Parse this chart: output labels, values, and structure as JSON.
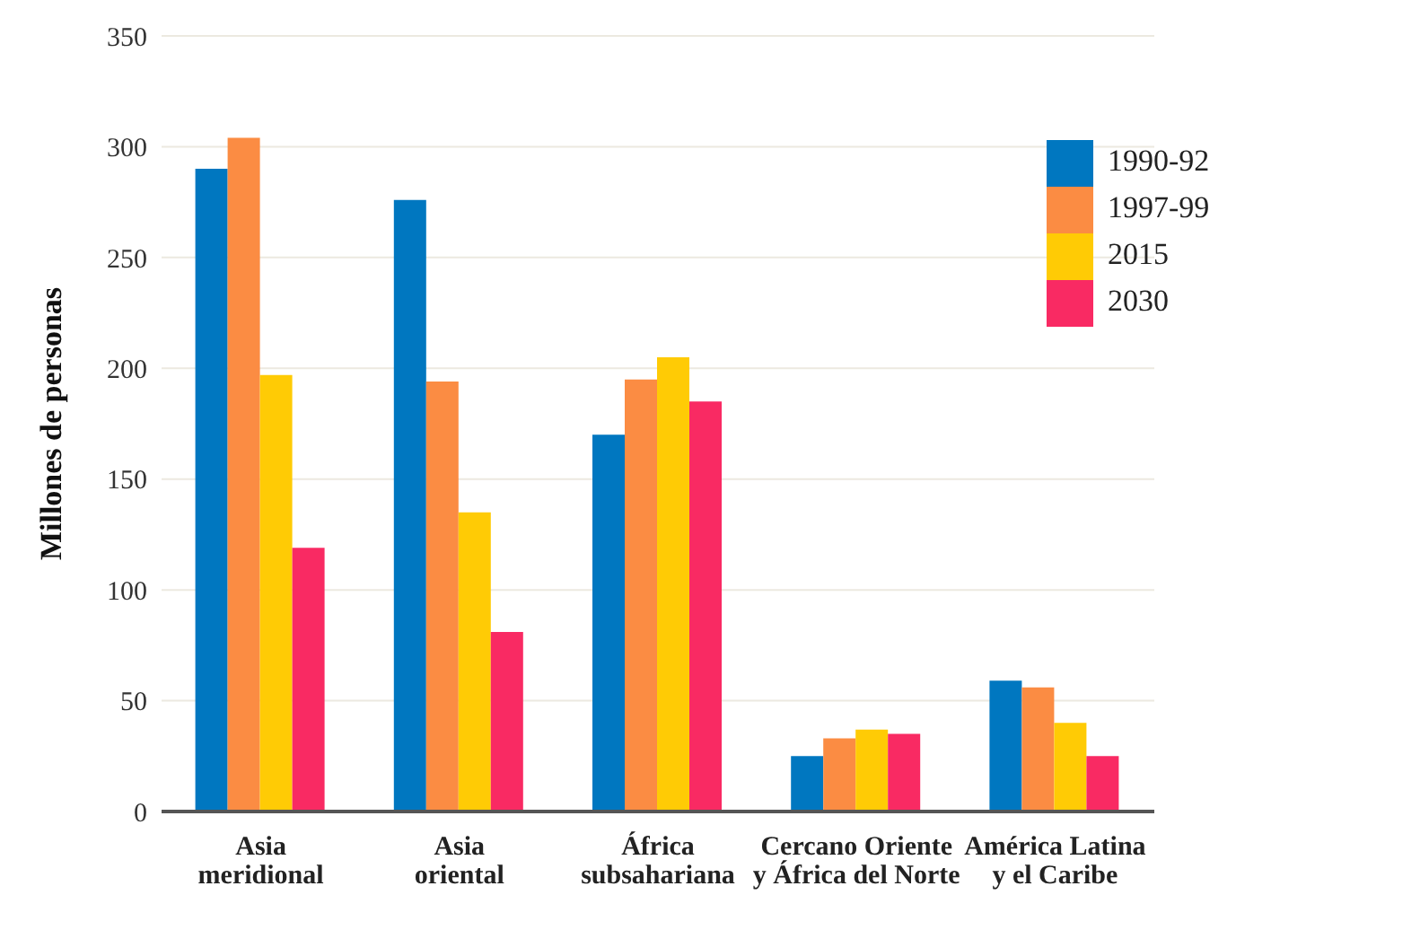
{
  "chart_data": {
    "type": "bar",
    "ylabel": "Millones de personas",
    "categories": [
      "Asia\nmeridional",
      "Asia\noriental",
      "África\nsubsahariana",
      "Cercano Oriente\ny África del Norte",
      "América Latina\ny el Caribe"
    ],
    "series": [
      {
        "name": "1990-92",
        "color": "#0077c0",
        "values": [
          290,
          276,
          170,
          25,
          59
        ]
      },
      {
        "name": "1997-99",
        "color": "#fb8c43",
        "values": [
          304,
          194,
          195,
          33,
          56
        ]
      },
      {
        "name": "2015",
        "color": "#ffcb05",
        "values": [
          197,
          135,
          205,
          37,
          40
        ]
      },
      {
        "name": "2030",
        "color": "#f92a63",
        "values": [
          119,
          81,
          185,
          35,
          25
        ]
      }
    ],
    "ylim": [
      0,
      350
    ],
    "yticks": [
      0,
      50,
      100,
      150,
      200,
      250,
      300,
      350
    ],
    "grid": "y",
    "legend": "top right"
  }
}
